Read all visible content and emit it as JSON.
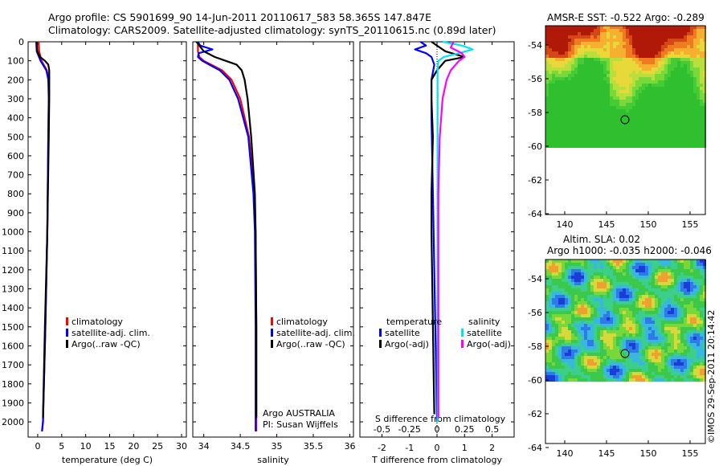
{
  "header": {
    "line1": "Argo profile: CS 5901699_90 14-Jun-2011 20110617_583 58.365S 147.847E",
    "line2": "Climatology: CARS2009. Satellite-adjusted climatology: synTS_20110615.nc (0.89d later)"
  },
  "depth_ticks": [
    0,
    100,
    200,
    300,
    400,
    500,
    600,
    700,
    800,
    900,
    1000,
    1100,
    1200,
    1300,
    1400,
    1500,
    1600,
    1700,
    1800,
    1900,
    2000
  ],
  "panels": {
    "temperature": {
      "xlabel": "temperature (deg C)",
      "xticks": [
        "0",
        "5",
        "10",
        "15",
        "20",
        "25",
        "30"
      ],
      "legend": [
        "climatology",
        "satellite-adj. clim.",
        "Argo(..raw -QC)"
      ]
    },
    "salinity": {
      "xlabel": "salinity",
      "xticks": [
        "34",
        "34.5",
        "35",
        "35.5",
        "36"
      ],
      "legend": [
        "climatology",
        "satellite-adj. clim.",
        "Argo(..raw -QC)"
      ],
      "credit1": "Argo AUSTRALIA",
      "credit2": "PI: Susan Wijffels"
    },
    "difference": {
      "xlabel": "T difference from climatology",
      "xticks": [
        "-2",
        "-1",
        "0",
        "1",
        "2"
      ],
      "s_title": "S difference from climatology",
      "s_ticks": [
        "-0.5",
        "-0.25",
        "0",
        "0.25",
        "0.5"
      ],
      "legend_temp_title": "temperature",
      "legend_sal_title": "salinity",
      "legend_temp": [
        "satellite",
        "Argo(-adj)"
      ],
      "legend_sal": [
        "satellite",
        "Argo(-adj)"
      ]
    }
  },
  "maps": {
    "sst_title": "AMSR-E SST: -0.522  Argo: -0.289",
    "sla_title1": "Altim. SLA: 0.02",
    "sla_title2": "Argo h1000: -0.035  h2000: -0.046",
    "lat_ticks": [
      "-54",
      "-56",
      "-58",
      "-60",
      "-62",
      "-64"
    ],
    "lon_ticks": [
      "140",
      "145",
      "150",
      "155"
    ],
    "stamp": "©IMOS 29-Sep-2011 20:14:42"
  },
  "colors": {
    "climatology": "#ff0000",
    "satellite": "#0000ff",
    "argo": "#000000",
    "sat_salinity": "#00e5ee",
    "argo_salinity": "#ff00ff"
  },
  "chart_data": [
    {
      "type": "line",
      "title": "",
      "xlabel": "temperature (deg C)",
      "ylabel": "",
      "xlim": [
        -2,
        31
      ],
      "ylim": [
        2080,
        0
      ],
      "series": [
        {
          "name": "climatology",
          "depth": [
            0,
            50,
            100,
            150,
            200,
            300,
            500,
            1000,
            1500,
            2000,
            2050
          ],
          "values": [
            0.2,
            0.3,
            0.8,
            1.9,
            2.3,
            2.3,
            2.2,
            2.0,
            1.6,
            1.1,
            0.9
          ]
        },
        {
          "name": "satellite-adj. clim.",
          "depth": [
            0,
            50,
            100,
            150,
            200,
            300,
            500,
            1000,
            1500,
            2000,
            2050
          ],
          "values": [
            -0.3,
            -0.2,
            0.6,
            1.8,
            2.2,
            2.3,
            2.2,
            2.0,
            1.6,
            1.1,
            0.9
          ]
        },
        {
          "name": "Argo(..raw -QC)",
          "depth": [
            0,
            50,
            80,
            100,
            120,
            150,
            200,
            300,
            500,
            1000,
            1500,
            1980
          ],
          "values": [
            -0.2,
            -0.1,
            0.5,
            1.5,
            2.2,
            2.4,
            2.4,
            2.4,
            2.3,
            2.0,
            1.5,
            1.1
          ]
        }
      ]
    },
    {
      "type": "line",
      "title": "",
      "xlabel": "salinity",
      "ylabel": "",
      "xlim": [
        33.85,
        36.05
      ],
      "ylim": [
        2080,
        0
      ],
      "series": [
        {
          "name": "climatology",
          "depth": [
            0,
            50,
            80,
            100,
            150,
            200,
            300,
            500,
            800,
            1000,
            1500,
            2000,
            2050
          ],
          "values": [
            33.92,
            33.92,
            33.94,
            34.0,
            34.25,
            34.38,
            34.5,
            34.62,
            34.69,
            34.71,
            34.72,
            34.72,
            34.72
          ]
        },
        {
          "name": "satellite-adj. clim.",
          "depth": [
            0,
            20,
            40,
            60,
            80,
            100,
            150,
            200,
            300,
            500,
            800,
            1000,
            1500,
            2000,
            2050
          ],
          "values": [
            33.92,
            33.95,
            34.12,
            33.93,
            33.92,
            33.98,
            34.22,
            34.35,
            34.47,
            34.61,
            34.68,
            34.7,
            34.71,
            34.71,
            34.71
          ]
        },
        {
          "name": "Argo(..raw -QC)",
          "depth": [
            0,
            50,
            80,
            100,
            120,
            150,
            200,
            300,
            500,
            800,
            1000,
            1500,
            1980
          ],
          "values": [
            33.9,
            34.0,
            34.15,
            34.3,
            34.45,
            34.52,
            34.56,
            34.6,
            34.65,
            34.7,
            34.71,
            34.72,
            34.72
          ]
        }
      ]
    },
    {
      "type": "line",
      "title": "",
      "xlabel": "T difference from climatology",
      "ylabel": "",
      "xlim": [
        -2.8,
        2.8
      ],
      "ylim": [
        2080,
        0
      ],
      "series": [
        {
          "name": "temperature satellite",
          "depth": [
            0,
            20,
            40,
            60,
            80,
            120,
            160,
            200,
            400,
            800,
            1200,
            1600,
            2000
          ],
          "values": [
            -0.6,
            -0.4,
            -0.8,
            -0.4,
            -0.2,
            -0.1,
            -0.15,
            -0.2,
            -0.2,
            -0.15,
            -0.1,
            -0.05,
            0.0
          ]
        },
        {
          "name": "temperature Argo(-adj)",
          "depth": [
            0,
            50,
            80,
            100,
            150,
            200,
            300,
            500,
            800,
            1000,
            1500,
            1960
          ],
          "values": [
            -0.2,
            0.3,
            1.0,
            0.3,
            0.0,
            -0.2,
            -0.2,
            -0.15,
            -0.2,
            -0.2,
            -0.15,
            -0.1
          ]
        },
        {
          "name": "salinity satellite",
          "depth": [
            0,
            20,
            40,
            60,
            80,
            100,
            150,
            200,
            400,
            800,
            1200,
            1600,
            2000
          ],
          "values": [
            0.2,
            0.9,
            1.3,
            0.8,
            0.25,
            0.05,
            0.02,
            0.02,
            0.02,
            0.02,
            0.02,
            0.02,
            0.02
          ]
        },
        {
          "name": "salinity Argo(-adj)",
          "depth": [
            0,
            30,
            60,
            80,
            100,
            150,
            200,
            300,
            500,
            800,
            1000,
            1300,
            1600,
            1980
          ],
          "values": [
            0.6,
            0.5,
            0.9,
            1.0,
            0.8,
            0.5,
            0.35,
            0.2,
            0.1,
            0.05,
            0.05,
            0.05,
            0.05,
            0.05
          ]
        }
      ]
    }
  ]
}
